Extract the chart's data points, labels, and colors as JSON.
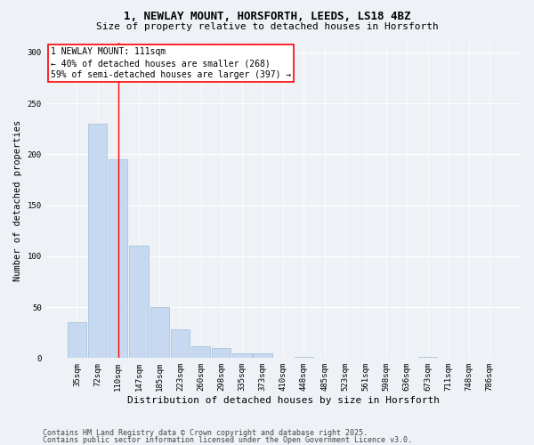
{
  "title1": "1, NEWLAY MOUNT, HORSFORTH, LEEDS, LS18 4BZ",
  "title2": "Size of property relative to detached houses in Horsforth",
  "xlabel": "Distribution of detached houses by size in Horsforth",
  "ylabel": "Number of detached properties",
  "categories": [
    "35sqm",
    "72sqm",
    "110sqm",
    "147sqm",
    "185sqm",
    "223sqm",
    "260sqm",
    "298sqm",
    "335sqm",
    "373sqm",
    "410sqm",
    "448sqm",
    "485sqm",
    "523sqm",
    "561sqm",
    "598sqm",
    "636sqm",
    "673sqm",
    "711sqm",
    "748sqm",
    "786sqm"
  ],
  "values": [
    35,
    230,
    195,
    110,
    50,
    28,
    12,
    10,
    5,
    5,
    0,
    1,
    0,
    0,
    0,
    0,
    0,
    1,
    0,
    0,
    0
  ],
  "bar_color": "#c6d9f0",
  "bar_edgecolor": "#a0bcd8",
  "redline_index": 2,
  "annotation_line1": "1 NEWLAY MOUNT: 111sqm",
  "annotation_line2": "← 40% of detached houses are smaller (268)",
  "annotation_line3": "59% of semi-detached houses are larger (397) →",
  "ylim": [
    0,
    310
  ],
  "yticks": [
    0,
    50,
    100,
    150,
    200,
    250,
    300
  ],
  "footer1": "Contains HM Land Registry data © Crown copyright and database right 2025.",
  "footer2": "Contains public sector information licensed under the Open Government Licence v3.0.",
  "bg_color": "#eef2f7",
  "plot_bg_color": "#eef2f7",
  "grid_color": "#ffffff",
  "title1_fontsize": 9,
  "title2_fontsize": 8,
  "xlabel_fontsize": 8,
  "ylabel_fontsize": 7.5,
  "tick_fontsize": 6.5,
  "annotation_fontsize": 7,
  "footer_fontsize": 6
}
